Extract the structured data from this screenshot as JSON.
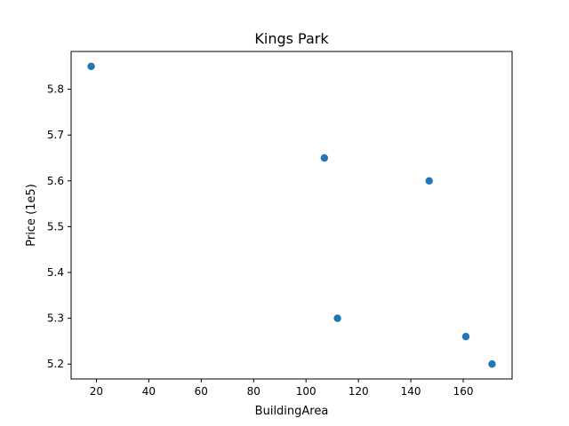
{
  "chart_data": {
    "type": "scatter",
    "title": "Kings Park",
    "xlabel": "BuildingArea",
    "ylabel": "Price (1e5)",
    "xlim": [
      10.35,
      178.65
    ],
    "ylim": [
      5.1675,
      5.8825
    ],
    "xticks": [
      20,
      40,
      60,
      80,
      100,
      120,
      140,
      160
    ],
    "xtick_labels": [
      "20",
      "40",
      "60",
      "80",
      "100",
      "120",
      "140",
      "160"
    ],
    "yticks": [
      5.2,
      5.3,
      5.4,
      5.5,
      5.6,
      5.7,
      5.8
    ],
    "ytick_labels": [
      "5.2",
      "5.3",
      "5.4",
      "5.5",
      "5.6",
      "5.7",
      "5.8"
    ],
    "grid": false,
    "legend": "none",
    "marker_color": "#1f77b4",
    "points": [
      {
        "x": 18,
        "y": 5.85
      },
      {
        "x": 107,
        "y": 5.65
      },
      {
        "x": 147,
        "y": 5.6
      },
      {
        "x": 112,
        "y": 5.3
      },
      {
        "x": 161,
        "y": 5.26
      },
      {
        "x": 171,
        "y": 5.2
      }
    ]
  }
}
